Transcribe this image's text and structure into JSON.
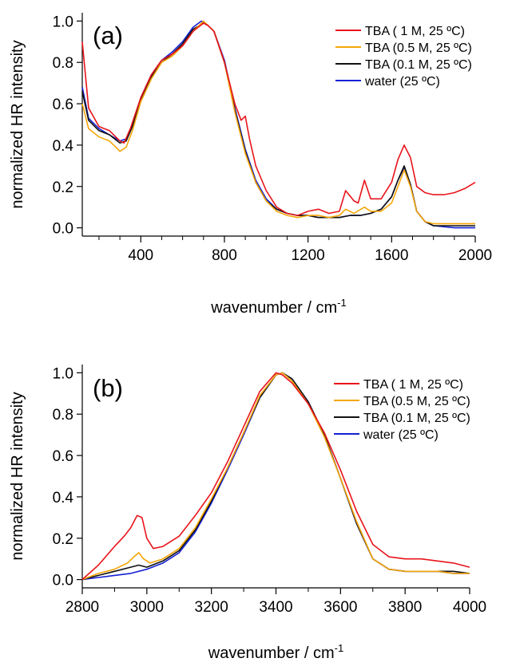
{
  "chart_data": [
    {
      "type": "line",
      "panel_label": "(a)",
      "xlabel": "wavenumber / cm",
      "xlabel_sup": "-1",
      "ylabel": "normalized HR intensity",
      "xlim": [
        120,
        2000
      ],
      "ylim": [
        -0.04,
        1.04
      ],
      "xticks": [
        400,
        800,
        1200,
        1600,
        2000
      ],
      "xminor": [
        200,
        300,
        500,
        600,
        700,
        900,
        1000,
        1100,
        1300,
        1400,
        1500,
        1700,
        1800,
        1900
      ],
      "yticks": [
        0.0,
        0.2,
        0.4,
        0.6,
        0.8,
        1.0
      ],
      "ytick_labels": [
        "0.0",
        "0.2",
        "0.4",
        "0.6",
        "0.8",
        "1.0"
      ],
      "grid": false,
      "legend_position": "top-right",
      "series": [
        {
          "name": "TBA (   1 M, 25 ºC)",
          "color": "#e8141b",
          "x": [
            120,
            150,
            200,
            250,
            300,
            320,
            350,
            400,
            450,
            500,
            550,
            600,
            650,
            700,
            720,
            750,
            800,
            850,
            880,
            900,
            920,
            950,
            1000,
            1050,
            1100,
            1150,
            1200,
            1250,
            1300,
            1350,
            1380,
            1420,
            1440,
            1470,
            1500,
            1550,
            1600,
            1630,
            1660,
            1690,
            1720,
            1760,
            1800,
            1850,
            1900,
            1950,
            2000
          ],
          "y": [
            0.9,
            0.58,
            0.49,
            0.47,
            0.42,
            0.41,
            0.48,
            0.63,
            0.74,
            0.81,
            0.84,
            0.88,
            0.95,
            0.99,
            0.98,
            0.95,
            0.8,
            0.6,
            0.52,
            0.54,
            0.43,
            0.3,
            0.18,
            0.1,
            0.07,
            0.06,
            0.08,
            0.09,
            0.07,
            0.08,
            0.18,
            0.13,
            0.12,
            0.23,
            0.14,
            0.14,
            0.22,
            0.33,
            0.4,
            0.34,
            0.2,
            0.17,
            0.16,
            0.16,
            0.17,
            0.19,
            0.22
          ]
        },
        {
          "name": "TBA (0.5 M, 25 ºC)",
          "color": "#f5a60a",
          "x": [
            120,
            150,
            200,
            250,
            300,
            330,
            360,
            400,
            450,
            500,
            550,
            600,
            650,
            700,
            720,
            750,
            800,
            850,
            900,
            950,
            1000,
            1050,
            1100,
            1150,
            1200,
            1250,
            1300,
            1350,
            1380,
            1420,
            1470,
            1500,
            1550,
            1600,
            1630,
            1660,
            1690,
            1720,
            1760,
            1800,
            1900,
            2000
          ],
          "y": [
            0.6,
            0.48,
            0.44,
            0.42,
            0.37,
            0.39,
            0.47,
            0.61,
            0.72,
            0.8,
            0.83,
            0.88,
            0.95,
            1.0,
            0.98,
            0.95,
            0.8,
            0.56,
            0.36,
            0.22,
            0.13,
            0.08,
            0.06,
            0.05,
            0.06,
            0.06,
            0.05,
            0.06,
            0.09,
            0.07,
            0.1,
            0.08,
            0.08,
            0.12,
            0.2,
            0.28,
            0.2,
            0.08,
            0.03,
            0.02,
            0.02,
            0.02
          ]
        },
        {
          "name": "TBA (0.1 M, 25 ºC)",
          "color": "#111111",
          "x": [
            120,
            150,
            200,
            250,
            300,
            330,
            360,
            400,
            450,
            500,
            550,
            600,
            650,
            700,
            720,
            750,
            800,
            850,
            900,
            950,
            1000,
            1050,
            1100,
            1150,
            1200,
            1250,
            1300,
            1350,
            1400,
            1450,
            1500,
            1550,
            1600,
            1630,
            1660,
            1690,
            1720,
            1760,
            1800,
            1900,
            2000
          ],
          "y": [
            0.66,
            0.52,
            0.47,
            0.45,
            0.41,
            0.42,
            0.49,
            0.62,
            0.73,
            0.8,
            0.84,
            0.89,
            0.96,
            0.99,
            0.98,
            0.95,
            0.8,
            0.57,
            0.37,
            0.22,
            0.13,
            0.09,
            0.07,
            0.06,
            0.06,
            0.05,
            0.05,
            0.05,
            0.06,
            0.06,
            0.07,
            0.09,
            0.15,
            0.23,
            0.3,
            0.21,
            0.08,
            0.03,
            0.01,
            0.01,
            0.01
          ]
        },
        {
          "name": "water (25 ºC)",
          "color": "#1420d4",
          "x": [
            120,
            150,
            200,
            250,
            300,
            330,
            360,
            400,
            450,
            500,
            550,
            600,
            650,
            690,
            720,
            750,
            800,
            850,
            900,
            950,
            1000,
            1050,
            1100,
            1150,
            1200,
            1250,
            1300,
            1350,
            1400,
            1450,
            1500,
            1550,
            1600,
            1630,
            1660,
            1690,
            1720,
            1760,
            1800,
            1900,
            2000
          ],
          "y": [
            0.68,
            0.53,
            0.48,
            0.45,
            0.42,
            0.43,
            0.5,
            0.63,
            0.74,
            0.81,
            0.85,
            0.9,
            0.97,
            1.0,
            0.98,
            0.95,
            0.81,
            0.58,
            0.38,
            0.23,
            0.14,
            0.09,
            0.07,
            0.06,
            0.06,
            0.05,
            0.05,
            0.05,
            0.06,
            0.06,
            0.07,
            0.09,
            0.15,
            0.23,
            0.29,
            0.21,
            0.08,
            0.03,
            0.01,
            0.0,
            0.0
          ]
        }
      ]
    },
    {
      "type": "line",
      "panel_label": "(b)",
      "xlabel": "wavenumber / cm",
      "xlabel_sup": "-1",
      "ylabel": "normalized HR intensity",
      "xlim": [
        2800,
        4000
      ],
      "ylim": [
        -0.04,
        1.04
      ],
      "xticks": [
        2800,
        3000,
        3200,
        3400,
        3600,
        3800,
        4000
      ],
      "xminor": [
        2900,
        3100,
        3300,
        3500,
        3700,
        3900
      ],
      "yticks": [
        0.0,
        0.2,
        0.4,
        0.6,
        0.8,
        1.0
      ],
      "ytick_labels": [
        "0.0",
        "0.2",
        "0.4",
        "0.6",
        "0.8",
        "1.0"
      ],
      "grid": false,
      "legend_position": "top-right",
      "series": [
        {
          "name": "TBA (   1 M, 25 ºC)",
          "color": "#e8141b",
          "x": [
            2800,
            2850,
            2900,
            2930,
            2950,
            2970,
            2985,
            3000,
            3020,
            3050,
            3100,
            3150,
            3200,
            3250,
            3300,
            3350,
            3400,
            3420,
            3450,
            3500,
            3550,
            3600,
            3650,
            3700,
            3750,
            3800,
            3850,
            3900,
            3950,
            4000
          ],
          "y": [
            0.0,
            0.07,
            0.16,
            0.21,
            0.25,
            0.31,
            0.3,
            0.2,
            0.15,
            0.16,
            0.21,
            0.31,
            0.42,
            0.57,
            0.74,
            0.91,
            1.0,
            0.99,
            0.95,
            0.85,
            0.71,
            0.53,
            0.33,
            0.17,
            0.11,
            0.1,
            0.1,
            0.09,
            0.08,
            0.06
          ]
        },
        {
          "name": "TBA (0.5 M, 25 ºC)",
          "color": "#f5a60a",
          "x": [
            2800,
            2850,
            2900,
            2940,
            2960,
            2975,
            2990,
            3010,
            3050,
            3100,
            3150,
            3200,
            3250,
            3300,
            3350,
            3400,
            3420,
            3450,
            3500,
            3550,
            3600,
            3650,
            3700,
            3750,
            3800,
            3850,
            3900,
            3950,
            4000
          ],
          "y": [
            0.0,
            0.03,
            0.05,
            0.08,
            0.11,
            0.13,
            0.1,
            0.08,
            0.1,
            0.15,
            0.25,
            0.39,
            0.54,
            0.71,
            0.89,
            0.99,
            1.0,
            0.96,
            0.85,
            0.69,
            0.49,
            0.28,
            0.1,
            0.05,
            0.04,
            0.04,
            0.04,
            0.03,
            0.03
          ]
        },
        {
          "name": "TBA (0.1 M, 25 ºC)",
          "color": "#111111",
          "x": [
            2800,
            2850,
            2900,
            2950,
            2975,
            3000,
            3050,
            3100,
            3150,
            3200,
            3250,
            3300,
            3350,
            3400,
            3420,
            3450,
            3500,
            3550,
            3600,
            3650,
            3700,
            3750,
            3800,
            3850,
            3900,
            3950,
            4000
          ],
          "y": [
            0.0,
            0.02,
            0.04,
            0.06,
            0.07,
            0.06,
            0.09,
            0.14,
            0.24,
            0.38,
            0.54,
            0.71,
            0.88,
            0.99,
            1.0,
            0.97,
            0.86,
            0.7,
            0.49,
            0.27,
            0.1,
            0.05,
            0.04,
            0.04,
            0.04,
            0.04,
            0.03
          ]
        },
        {
          "name": "water (25 ºC)",
          "color": "#1420d4",
          "x": [
            2800,
            2850,
            2900,
            2950,
            3000,
            3050,
            3100,
            3150,
            3200,
            3250,
            3300,
            3350,
            3400,
            3420,
            3450,
            3500,
            3550,
            3600,
            3650,
            3700,
            3750,
            3800,
            3850,
            3900,
            3950,
            4000
          ],
          "y": [
            0.0,
            0.01,
            0.02,
            0.03,
            0.05,
            0.08,
            0.13,
            0.23,
            0.37,
            0.53,
            0.7,
            0.88,
            0.99,
            1.0,
            0.97,
            0.86,
            0.7,
            0.49,
            0.27,
            0.1,
            0.05,
            0.04,
            0.04,
            0.04,
            0.03,
            0.03
          ]
        }
      ]
    }
  ]
}
